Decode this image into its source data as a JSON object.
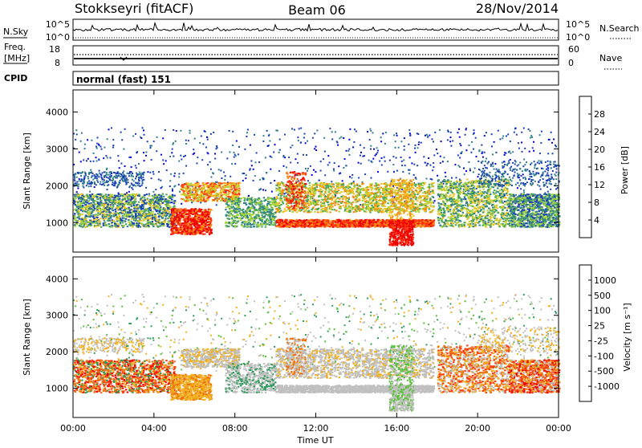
{
  "header": {
    "station": "Stokkseyri (fitACF)",
    "beam": "Beam 06",
    "date": "28/Nov/2014"
  },
  "nsky_panel": {
    "label": "N.Sky",
    "right_label": "N.Search",
    "left_ticks": [
      "10^5",
      "10^0"
    ],
    "right_ticks": [
      "10^5",
      "10^0"
    ]
  },
  "freq_panel": {
    "label_line1": "Freq.",
    "label_line2": "[MHz]",
    "right_label": "Nave",
    "left_ticks": [
      "18",
      "8"
    ],
    "right_ticks": [
      "60",
      "0"
    ]
  },
  "cpid_panel": {
    "label": "CPID",
    "text": "normal (fast) 151"
  },
  "chart_data": [
    {
      "type": "heatmap",
      "name": "power",
      "ylabel": "Slant Range [km]",
      "yticks": [
        "4000",
        "3000",
        "2000",
        "1000"
      ],
      "ylim": [
        200,
        4600
      ],
      "xlim": [
        0,
        24
      ],
      "colorbar_label": "Power [dB]",
      "colorbar_ticks": [
        "28",
        "24",
        "20",
        "16",
        "12",
        "8",
        "4"
      ],
      "colorbar_colors": [
        "#0000dd",
        "#1a3fb4",
        "#2f7f8a",
        "#4fa85a",
        "#a9d63a",
        "#f0c420",
        "#f58a10",
        "#ff3a10",
        "#ee0000"
      ]
    },
    {
      "type": "heatmap",
      "name": "velocity",
      "ylabel": "Slant Range [km]",
      "yticks": [
        "4000",
        "3000",
        "2000",
        "1000"
      ],
      "ylim": [
        200,
        4600
      ],
      "xlim": [
        0,
        24
      ],
      "colorbar_label": "Velocity [m s⁻¹]",
      "colorbar_ticks": [
        "1000",
        "500",
        "100",
        "25",
        "-25",
        "-100",
        "-500",
        "-1000"
      ],
      "colorbar_colors": [
        "#1a3fb4",
        "#2f7fa0",
        "#2f9a5a",
        "#5ac03a",
        "#c0c0c0",
        "#f0b020",
        "#f07010",
        "#ff3a10",
        "#ee0000"
      ]
    }
  ],
  "xaxis": {
    "ticks": [
      "00:00",
      "04:00",
      "08:00",
      "12:00",
      "16:00",
      "20:00",
      "00:00"
    ],
    "label": "Time UT"
  }
}
